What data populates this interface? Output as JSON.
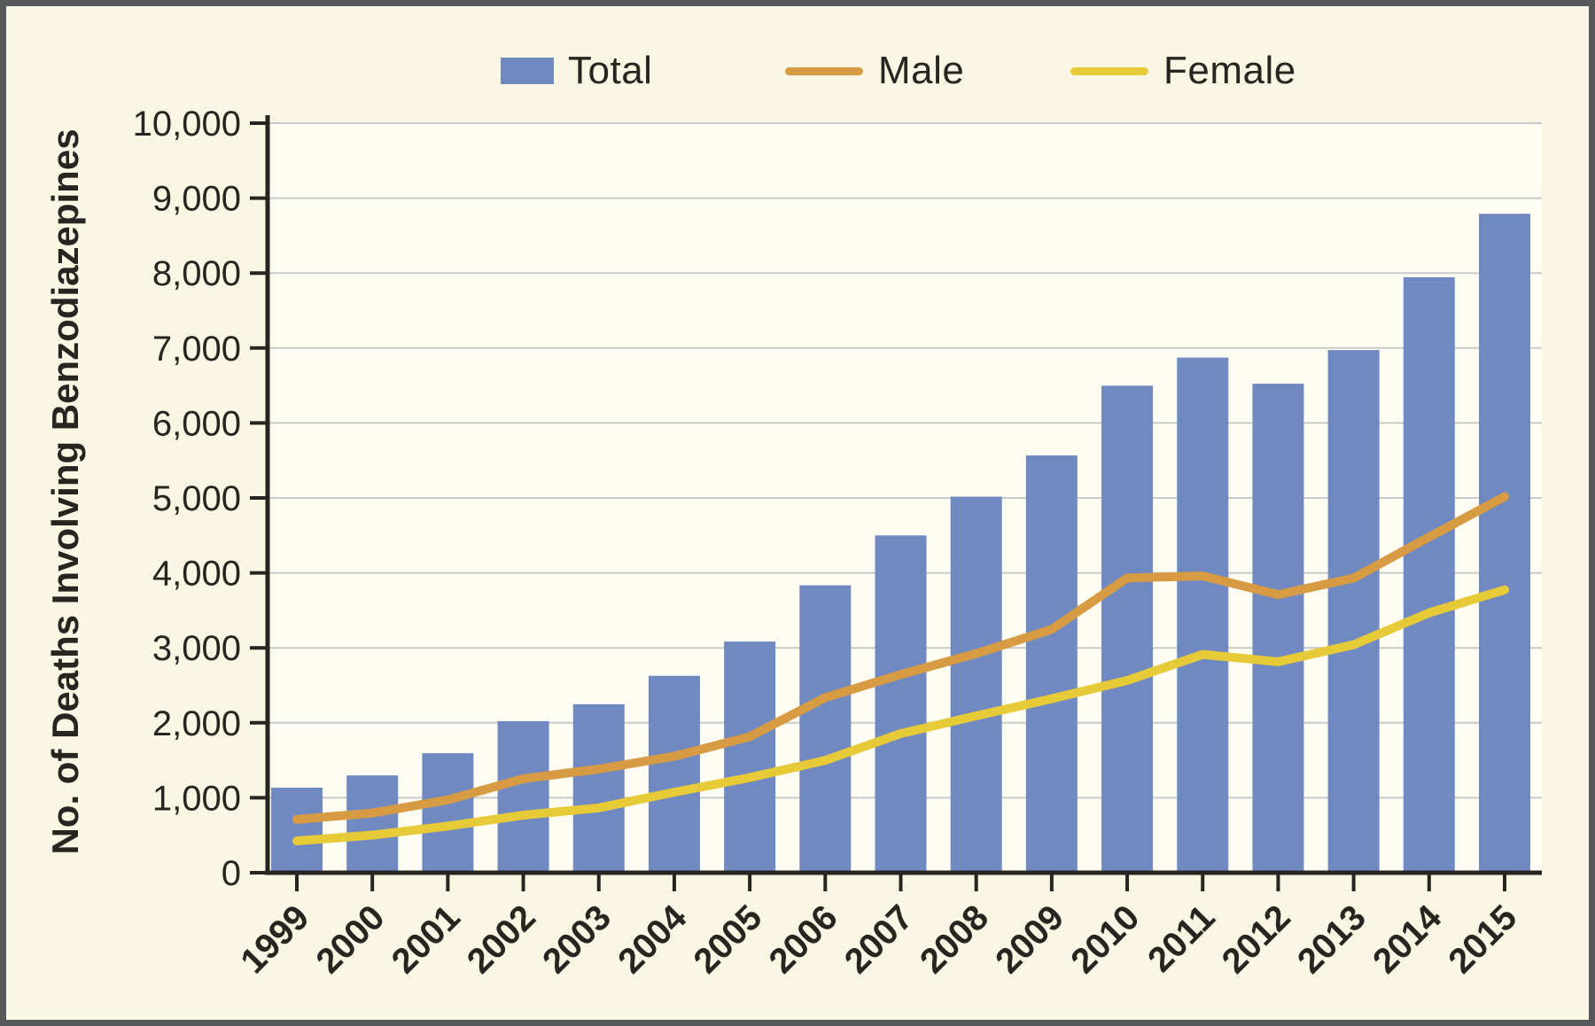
{
  "legend": {
    "total": "Total",
    "male": "Male",
    "female": "Female"
  },
  "chart_data": {
    "type": "bar",
    "title": "",
    "xlabel": "",
    "ylabel": "No. of Deaths Involving Benzodiazepines",
    "ylim": [
      0,
      10000
    ],
    "ytick_interval": 1000,
    "yticks": [
      0,
      1000,
      2000,
      3000,
      4000,
      5000,
      6000,
      7000,
      8000,
      9000,
      10000
    ],
    "grid": true,
    "legend_position": "top",
    "categories": [
      "1999",
      "2000",
      "2001",
      "2002",
      "2003",
      "2004",
      "2005",
      "2006",
      "2007",
      "2008",
      "2009",
      "2010",
      "2011",
      "2012",
      "2013",
      "2014",
      "2015"
    ],
    "series": [
      {
        "name": "Total",
        "type": "bar",
        "values": [
          1135,
          1298,
          1594,
          2022,
          2248,
          2627,
          3084,
          3835,
          4500,
          5017,
          5567,
          6497,
          6872,
          6524,
          6973,
          7945,
          8791
        ]
      },
      {
        "name": "Male",
        "type": "line",
        "values": [
          711,
          796,
          972,
          1254,
          1383,
          1553,
          1815,
          2336,
          2644,
          2924,
          3246,
          3932,
          3960,
          3710,
          3931,
          4478,
          5017
        ]
      },
      {
        "name": "Female",
        "type": "line",
        "values": [
          424,
          502,
          622,
          768,
          865,
          1074,
          1269,
          1499,
          1856,
          2093,
          2321,
          2565,
          2912,
          2814,
          3042,
          3467,
          3774
        ]
      }
    ],
    "colors": {
      "total": "#7089c1",
      "male": "#d69b43",
      "female": "#e7ca37",
      "background": "#f9f6e4",
      "plot_background": "#fdfdf3",
      "grid": "#c9c9c9",
      "axis": "#262520",
      "frame": "#57585a",
      "text": "#262520"
    }
  }
}
